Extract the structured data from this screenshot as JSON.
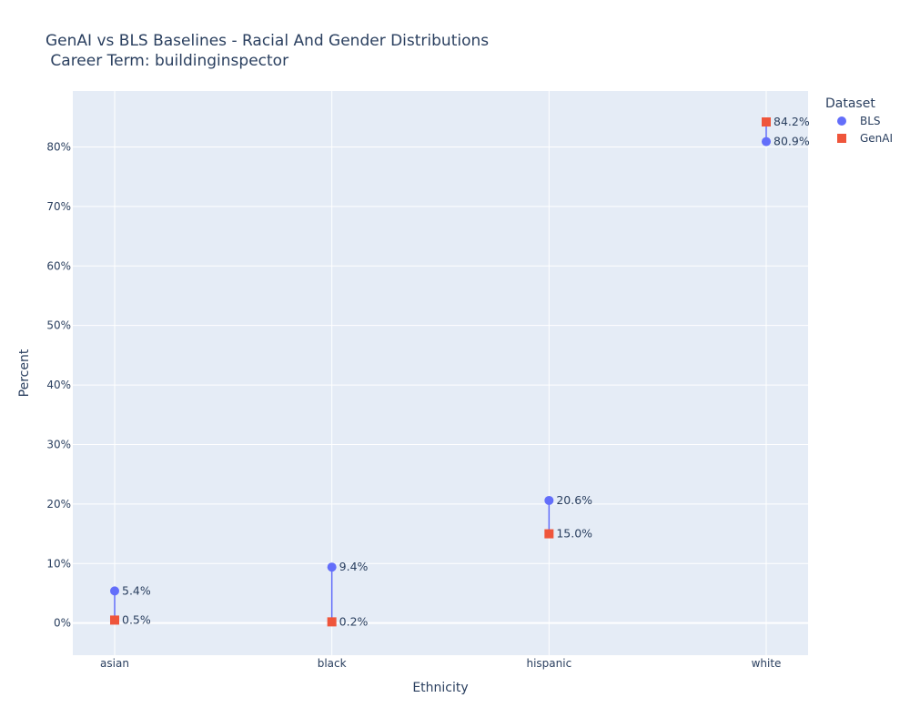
{
  "chart_data": {
    "type": "scatter",
    "title_line1": "GenAI vs BLS Baselines -  Racial And Gender Distributions",
    "title_line2": " Career Term: buildinginspector",
    "xlabel": "Ethnicity",
    "ylabel": "Percent",
    "categories": [
      "asian",
      "black",
      "hispanic",
      "white"
    ],
    "ylim": [
      -5.4,
      89.4
    ],
    "y_ticks": [
      0,
      10,
      20,
      30,
      40,
      50,
      60,
      70,
      80
    ],
    "y_tick_labels": [
      "0%",
      "10%",
      "20%",
      "30%",
      "40%",
      "50%",
      "60%",
      "70%",
      "80%"
    ],
    "grid": true,
    "legend": {
      "title": "Dataset",
      "placement": "top-right"
    },
    "series": [
      {
        "name": "BLS",
        "marker": "circle",
        "color": "#636efa",
        "values": [
          5.4,
          9.4,
          20.6,
          80.9
        ],
        "labels": [
          "5.4%",
          "9.4%",
          "20.6%",
          "80.9%"
        ]
      },
      {
        "name": "GenAI",
        "marker": "square",
        "color": "#ef553b",
        "values": [
          0.5,
          0.2,
          15.0,
          84.2
        ],
        "labels": [
          "0.5%",
          "0.2%",
          "15.0%",
          "84.2%"
        ]
      }
    ],
    "connector_color": "#636efa",
    "plot_bg": "#e5ecf6",
    "grid_color": "#ffffff"
  }
}
